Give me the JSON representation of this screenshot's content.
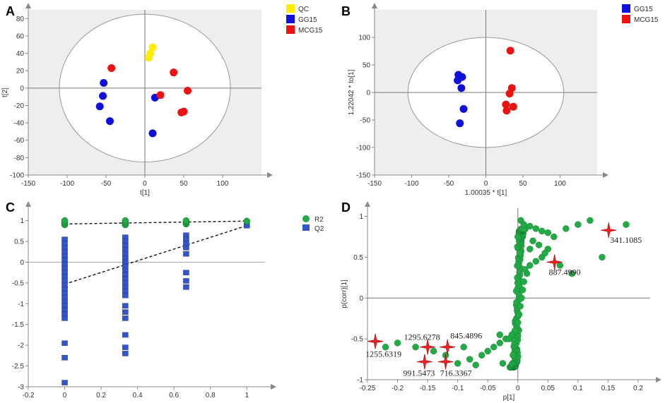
{
  "colors": {
    "qc": "#ffee00",
    "gg15": "#1010dd",
    "mcg15": "#ee1111",
    "r2": "#22aa44",
    "q2": "#3355cc",
    "green_points": "#22aa44",
    "star": "#ee2222",
    "shade": "#eeeeee"
  },
  "chart_data": [
    {
      "id": "A",
      "panel_label": "A",
      "type": "scatter",
      "title": "",
      "xlabel": "t[1]",
      "ylabel": "t[2]",
      "xlim": [
        -150,
        150
      ],
      "ylim": [
        -100,
        90
      ],
      "xticks": [
        -150,
        -100,
        -50,
        0,
        50,
        100
      ],
      "yticks": [
        -100,
        -80,
        -60,
        -40,
        -20,
        0,
        20,
        40,
        60,
        80
      ],
      "ellipse": {
        "rx": 110,
        "ry": 85
      },
      "legend": [
        "QC",
        "GG15",
        "MCG15"
      ],
      "series": [
        {
          "name": "QC",
          "color_key": "qc",
          "points": [
            [
              5,
              35
            ],
            [
              7,
              40
            ],
            [
              10,
              47
            ]
          ]
        },
        {
          "name": "GG15",
          "color_key": "gg15",
          "points": [
            [
              -53,
              6
            ],
            [
              -54,
              -9
            ],
            [
              -58,
              -21
            ],
            [
              -45,
              -38
            ],
            [
              13,
              -11
            ],
            [
              10,
              -52
            ]
          ]
        },
        {
          "name": "MCG15",
          "color_key": "mcg15",
          "points": [
            [
              -43,
              23
            ],
            [
              37,
              18
            ],
            [
              20,
              -8
            ],
            [
              55,
              -3
            ],
            [
              47,
              -28
            ],
            [
              50,
              -27
            ]
          ]
        }
      ]
    },
    {
      "id": "B",
      "panel_label": "B",
      "type": "scatter",
      "title": "",
      "xlabel": "1.00035 * t[1]",
      "ylabel": "1.22042 * to[1]",
      "xlim": [
        -150,
        150
      ],
      "ylim": [
        -150,
        150
      ],
      "xticks": [
        -150,
        -100,
        -50,
        0,
        50,
        100
      ],
      "yticks": [
        -150,
        -100,
        -50,
        0,
        50,
        100
      ],
      "ellipse": {
        "rx": 105,
        "ry": 100
      },
      "legend": [
        "GG15",
        "MCG15"
      ],
      "series": [
        {
          "name": "GG15",
          "color_key": "gg15",
          "points": [
            [
              -37,
              32
            ],
            [
              -32,
              28
            ],
            [
              -38,
              22
            ],
            [
              -33,
              8
            ],
            [
              -30,
              -30
            ],
            [
              -35,
              -56
            ]
          ]
        },
        {
          "name": "MCG15",
          "color_key": "mcg15",
          "points": [
            [
              33,
              76
            ],
            [
              35,
              8
            ],
            [
              32,
              -2
            ],
            [
              27,
              -22
            ],
            [
              28,
              -33
            ],
            [
              37,
              -26
            ]
          ]
        }
      ]
    },
    {
      "id": "C",
      "panel_label": "C",
      "type": "scatter",
      "title": "",
      "xlabel": "",
      "ylabel": "",
      "xlim": [
        -0.2,
        1.1
      ],
      "ylim": [
        -3,
        1.3
      ],
      "xticks": [
        -0.2,
        0,
        0.2,
        0.4,
        0.6,
        0.8,
        1
      ],
      "yticks": [
        -3,
        -2.5,
        -2,
        -1.5,
        -1,
        -0.5,
        0,
        0.5,
        1
      ],
      "legend": [
        "R2",
        "Q2"
      ],
      "series": [
        {
          "name": "R2",
          "color_key": "r2",
          "x_groups": [
            0,
            0.333,
            0.667,
            1
          ],
          "y_range": [
            [
              0.9,
              1.0
            ],
            [
              0.9,
              1.0
            ],
            [
              0.92,
              1.0
            ],
            [
              0.99,
              0.99
            ]
          ]
        },
        {
          "name": "Q2",
          "color_key": "q2",
          "points": [
            [
              0,
              0.55
            ],
            [
              0,
              0.45
            ],
            [
              0,
              0.35
            ],
            [
              0,
              0.25
            ],
            [
              0,
              0.15
            ],
            [
              0,
              0.05
            ],
            [
              0,
              -0.05
            ],
            [
              0,
              -0.15
            ],
            [
              0,
              -0.25
            ],
            [
              0,
              -0.35
            ],
            [
              0,
              -0.45
            ],
            [
              0,
              -0.55
            ],
            [
              0,
              -0.65
            ],
            [
              0,
              -0.75
            ],
            [
              0,
              -0.85
            ],
            [
              0,
              -0.95
            ],
            [
              0,
              -1.05
            ],
            [
              0,
              -1.15
            ],
            [
              0,
              -1.25
            ],
            [
              0,
              -1.35
            ],
            [
              0,
              -1.95
            ],
            [
              0,
              -2.3
            ],
            [
              0,
              -2.9
            ],
            [
              0.333,
              0.6
            ],
            [
              0.333,
              0.5
            ],
            [
              0.333,
              0.4
            ],
            [
              0.333,
              0.3
            ],
            [
              0.333,
              0.2
            ],
            [
              0.333,
              0.1
            ],
            [
              0.333,
              0.0
            ],
            [
              0.333,
              -0.1
            ],
            [
              0.333,
              -0.2
            ],
            [
              0.333,
              -0.3
            ],
            [
              0.333,
              -0.4
            ],
            [
              0.333,
              -0.5
            ],
            [
              0.333,
              -0.6
            ],
            [
              0.333,
              -0.7
            ],
            [
              0.333,
              -0.8
            ],
            [
              0.333,
              -1.05
            ],
            [
              0.333,
              -1.2
            ],
            [
              0.333,
              -1.35
            ],
            [
              0.333,
              -1.75
            ],
            [
              0.333,
              -2.05
            ],
            [
              0.333,
              -2.2
            ],
            [
              0.667,
              0.65
            ],
            [
              0.667,
              0.55
            ],
            [
              0.667,
              0.45
            ],
            [
              0.667,
              0.35
            ],
            [
              0.667,
              0.2
            ],
            [
              0.667,
              -0.25
            ],
            [
              0.667,
              -0.45
            ],
            [
              0.667,
              -0.6
            ],
            [
              1,
              0.88
            ]
          ]
        }
      ],
      "regression_lines": [
        {
          "name": "R2 intercept",
          "points": [
            [
              0,
              0.92
            ],
            [
              1,
              0.99
            ]
          ]
        },
        {
          "name": "Q2 intercept",
          "points": [
            [
              0,
              -0.53
            ],
            [
              1,
              0.88
            ]
          ]
        }
      ]
    },
    {
      "id": "D",
      "panel_label": "D",
      "type": "scatter",
      "title": "",
      "xlabel": "p[1]",
      "ylabel": "p(corr)[1]",
      "xlim": [
        -0.25,
        0.22
      ],
      "ylim": [
        -1.0,
        1.1
      ],
      "xticks": [
        -0.25,
        -0.2,
        -0.15,
        -0.1,
        -0.05,
        0,
        0.05,
        0.1,
        0.15,
        0.2
      ],
      "yticks": [
        -1,
        -0.5,
        0,
        0.5,
        1
      ],
      "legend": [],
      "series": [
        {
          "name": "variables",
          "color_key": "green_points",
          "points": [
            [
              0.005,
              0.95
            ],
            [
              0.01,
              0.9
            ],
            [
              0.02,
              0.88
            ],
            [
              0.03,
              0.85
            ],
            [
              0.04,
              0.82
            ],
            [
              0.05,
              0.8
            ],
            [
              0.06,
              0.75
            ],
            [
              0.08,
              0.85
            ],
            [
              0.1,
              0.9
            ],
            [
              0.12,
              0.95
            ],
            [
              0.18,
              0.9
            ],
            [
              0.14,
              0.5
            ],
            [
              0.09,
              0.3
            ],
            [
              0.07,
              0.4
            ],
            [
              0.05,
              0.6
            ],
            [
              0.04,
              0.5
            ],
            [
              0.03,
              0.45
            ],
            [
              0.02,
              0.4
            ],
            [
              0.015,
              0.3
            ],
            [
              0.01,
              0.2
            ],
            [
              0.008,
              0.1
            ],
            [
              0.006,
              0.0
            ],
            [
              0.004,
              -0.1
            ],
            [
              0.002,
              -0.2
            ],
            [
              0.0,
              -0.3
            ],
            [
              -0.005,
              -0.4
            ],
            [
              -0.01,
              -0.45
            ],
            [
              -0.02,
              -0.5
            ],
            [
              -0.03,
              -0.55
            ],
            [
              -0.04,
              -0.6
            ],
            [
              -0.05,
              -0.65
            ],
            [
              -0.06,
              -0.7
            ],
            [
              -0.08,
              -0.75
            ],
            [
              -0.1,
              -0.8
            ],
            [
              -0.12,
              -0.7
            ],
            [
              -0.14,
              -0.65
            ],
            [
              -0.17,
              -0.6
            ],
            [
              -0.2,
              -0.55
            ],
            [
              -0.22,
              -0.6
            ],
            [
              -0.03,
              -0.45
            ],
            [
              -0.015,
              -0.5
            ],
            [
              0.025,
              0.7
            ],
            [
              0.035,
              0.65
            ],
            [
              0.045,
              0.55
            ],
            [
              0.02,
              0.6
            ],
            [
              0.0,
              0.75
            ],
            [
              0.003,
              0.55
            ],
            [
              0.012,
              0.35
            ],
            [
              -0.008,
              -0.7
            ],
            [
              -0.025,
              -0.8
            ],
            [
              -0.07,
              -0.82
            ],
            [
              -0.09,
              -0.6
            ]
          ]
        },
        {
          "name": "highlighted",
          "color_key": "star",
          "points": [
            {
              "x": 0.151,
              "y": 0.83,
              "label": "341.1085"
            },
            {
              "x": 0.061,
              "y": 0.44,
              "label": "887.4990"
            },
            {
              "x": -0.237,
              "y": -0.53,
              "label": "1255.6319"
            },
            {
              "x": -0.15,
              "y": -0.6,
              "label": "1295.6278"
            },
            {
              "x": -0.155,
              "y": -0.78,
              "label": "991.5473"
            },
            {
              "x": -0.117,
              "y": -0.6,
              "label": "845.4896"
            },
            {
              "x": -0.12,
              "y": -0.78,
              "label": "716.3367"
            }
          ]
        }
      ]
    }
  ]
}
